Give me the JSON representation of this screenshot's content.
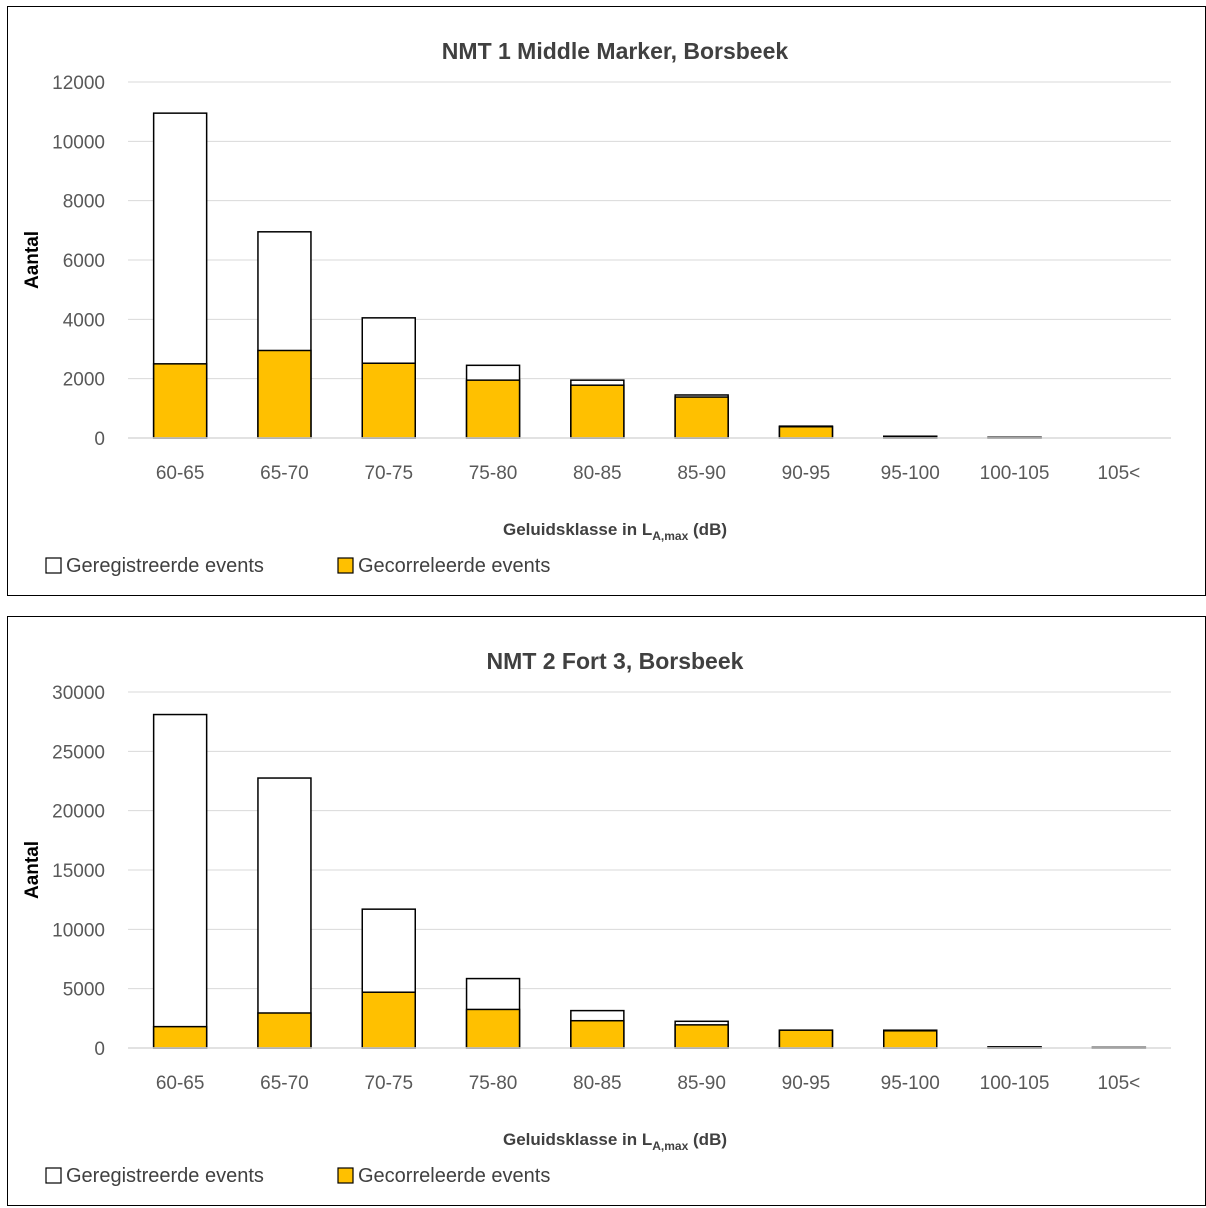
{
  "colors": {
    "registered_fill": "#ffffff",
    "correlated_fill": "#ffc000",
    "bar_stroke": "#000000",
    "grid": "#d9d9d9"
  },
  "legend": {
    "registered": "Geregistreerde events",
    "correlated": "Gecorreleerde events"
  },
  "chart_data": [
    {
      "type": "bar",
      "title": "NMT 1 Middle Marker, Borsbeek",
      "ylabel": "Aantal",
      "xlabel_main": "Geluidsklasse in L",
      "xlabel_sub": "A,max",
      "xlabel_tail": " (dB)",
      "ylim": [
        0,
        12000
      ],
      "yticks": [
        0,
        2000,
        4000,
        6000,
        8000,
        10000,
        12000
      ],
      "grid": true,
      "legend_position": "bottom-left",
      "categories": [
        "60-65",
        "65-70",
        "70-75",
        "75-80",
        "80-85",
        "85-90",
        "90-95",
        "95-100",
        "100-105",
        "105<"
      ],
      "series": [
        {
          "name": "Geregistreerde events",
          "values": [
            10950,
            6950,
            4050,
            2450,
            1950,
            1450,
            400,
            60,
            25,
            0
          ]
        },
        {
          "name": "Gecorreleerde events",
          "values": [
            2500,
            2950,
            2520,
            1950,
            1780,
            1380,
            380,
            30,
            10,
            0
          ]
        }
      ]
    },
    {
      "type": "bar",
      "title": "NMT 2 Fort 3, Borsbeek",
      "ylabel": "Aantal",
      "xlabel_main": "Geluidsklasse in L",
      "xlabel_sub": "A,max",
      "xlabel_tail": " (dB)",
      "ylim": [
        0,
        30000
      ],
      "yticks": [
        0,
        5000,
        10000,
        15000,
        20000,
        25000,
        30000
      ],
      "grid": true,
      "legend_position": "bottom-left",
      "categories": [
        "60-65",
        "65-70",
        "70-75",
        "75-80",
        "80-85",
        "85-90",
        "90-95",
        "95-100",
        "100-105",
        "105<"
      ],
      "series": [
        {
          "name": "Geregistreerde events",
          "values": [
            28100,
            22750,
            11700,
            5850,
            3150,
            2250,
            1500,
            1500,
            100,
            50
          ]
        },
        {
          "name": "Gecorreleerde events",
          "values": [
            1800,
            2950,
            4700,
            3250,
            2300,
            1950,
            1500,
            1450,
            50,
            25
          ]
        }
      ]
    }
  ]
}
